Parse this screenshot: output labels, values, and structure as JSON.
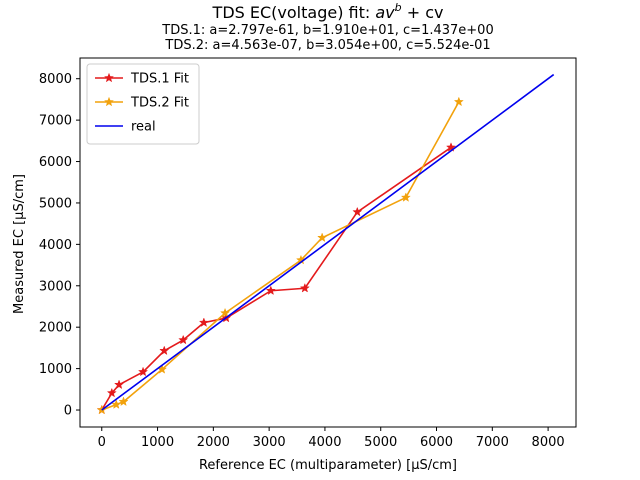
{
  "chart_data": {
    "type": "line",
    "title": "TDS EC(voltage) fit: av^b + cv",
    "title_parts": {
      "prefix": "TDS EC(voltage) fit: ",
      "base_a": "av",
      "exp_b": "b",
      "suffix": " + cv"
    },
    "subtitle_lines": [
      "TDS.1: a=2.797e-61, b=1.910e+01, c=1.437e+00",
      "TDS.2: a=4.563e-07, b=3.054e+00, c=5.524e-01"
    ],
    "xlabel": "Reference EC (multiparameter) [µS/cm]",
    "ylabel": "Measured EC [µS/cm]",
    "xlim": [
      -390,
      8500
    ],
    "ylim": [
      -410,
      8500
    ],
    "xticks": [
      0,
      1000,
      2000,
      3000,
      4000,
      5000,
      6000,
      7000,
      8000
    ],
    "yticks": [
      0,
      1000,
      2000,
      3000,
      4000,
      5000,
      6000,
      7000,
      8000
    ],
    "grid": false,
    "legend_position": "top-left",
    "series": [
      {
        "name": "TDS.1 Fit",
        "color": "#e41a1c",
        "marker": "star",
        "x": [
          0,
          180,
          310,
          740,
          1120,
          1460,
          1830,
          2230,
          3030,
          3640,
          4580,
          6260
        ],
        "y": [
          0,
          410,
          610,
          920,
          1430,
          1690,
          2110,
          2220,
          2880,
          2940,
          4780,
          6340
        ]
      },
      {
        "name": "TDS.2 Fit",
        "color": "#f2a20c",
        "marker": "star",
        "x": [
          0,
          260,
          390,
          1080,
          2210,
          3570,
          3950,
          5450,
          6400
        ],
        "y": [
          0,
          130,
          200,
          980,
          2340,
          3620,
          4160,
          5130,
          7440
        ]
      },
      {
        "name": "real",
        "color": "#0000ee",
        "marker": "none",
        "x": [
          0,
          8100
        ],
        "y": [
          0,
          8100
        ]
      }
    ]
  }
}
